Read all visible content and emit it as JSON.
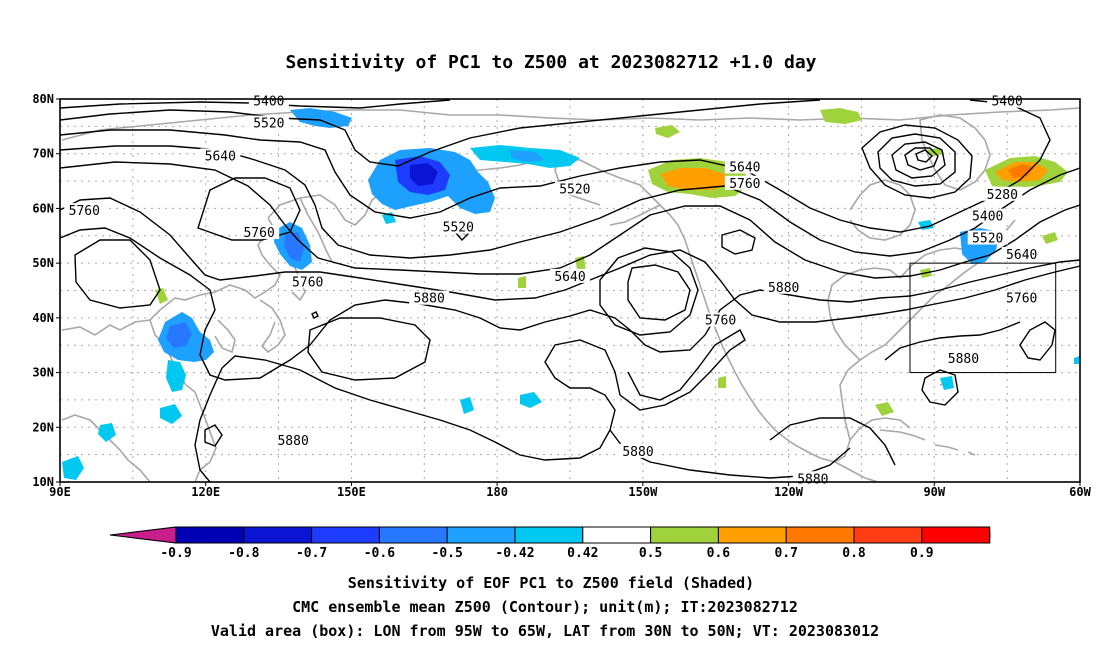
{
  "title": "Sensitivity of PC1 to Z500 at 2023082712 +1.0 day",
  "map": {
    "lon_labels": [
      "90E",
      "120E",
      "150E",
      "180",
      "150W",
      "120W",
      "90W",
      "60W"
    ],
    "lat_labels": [
      "80N",
      "70N",
      "60N",
      "50N",
      "40N",
      "30N",
      "20N",
      "10N"
    ],
    "contour_labels": [
      {
        "text": "5400",
        "lon": 133,
        "lat": 79.5
      },
      {
        "text": "5520",
        "lon": 133,
        "lat": 75.5
      },
      {
        "text": "5640",
        "lon": 123,
        "lat": 69.5
      },
      {
        "text": "5760",
        "lon": 95,
        "lat": 59.5
      },
      {
        "text": "5760",
        "lon": 131,
        "lat": 55.5
      },
      {
        "text": "5760",
        "lon": 141,
        "lat": 46.5
      },
      {
        "text": "5880",
        "lon": 166,
        "lat": 43.5
      },
      {
        "text": "5520",
        "lon": 172,
        "lat": 56.5
      },
      {
        "text": "5520",
        "lon": -164,
        "lat": 63.5
      },
      {
        "text": "5640",
        "lon": -165,
        "lat": 47.5
      },
      {
        "text": "5640",
        "lon": -129,
        "lat": 67.5
      },
      {
        "text": "5760",
        "lon": -129,
        "lat": 64.5
      },
      {
        "text": "5760",
        "lon": -134,
        "lat": 39.5
      },
      {
        "text": "5880",
        "lon": -121,
        "lat": 45.5
      },
      {
        "text": "5400",
        "lon": -75,
        "lat": 79.5
      },
      {
        "text": "5280",
        "lon": -76,
        "lat": 62.5
      },
      {
        "text": "5400",
        "lon": -79,
        "lat": 58.5
      },
      {
        "text": "5520",
        "lon": -79,
        "lat": 54.5
      },
      {
        "text": "5640",
        "lon": -72,
        "lat": 51.5
      },
      {
        "text": "5760",
        "lon": -72,
        "lat": 43.5
      },
      {
        "text": "5880",
        "lon": -84,
        "lat": 32.5
      },
      {
        "text": "5880",
        "lon": 138,
        "lat": 17.5
      },
      {
        "text": "5880",
        "lon": -151,
        "lat": 15.5
      },
      {
        "text": "5880",
        "lon": -115,
        "lat": 10.5
      }
    ],
    "valid_box": {
      "lon_min": -95,
      "lon_max": -65,
      "lat_min": 30,
      "lat_max": 50
    }
  },
  "colorbar": {
    "labels": [
      "-0.9",
      "-0.8",
      "-0.7",
      "-0.6",
      "-0.5",
      "-0.42",
      "0.42",
      "0.5",
      "0.6",
      "0.7",
      "0.8",
      "0.9"
    ],
    "colors": [
      "#c81e8c",
      "#0000b4",
      "#0a14d2",
      "#1e3cff",
      "#2878ff",
      "#1ea0ff",
      "#00c8f0",
      "#ffffff",
      "#a0d23c",
      "#ffa000",
      "#ff7800",
      "#ff3c14",
      "#ff0000",
      "#f09bc8"
    ]
  },
  "footer": {
    "line1": "Sensitivity of EOF PC1 to Z500 field (Shaded)",
    "line2": "CMC ensemble mean Z500 (Contour); unit(m); IT:2023082712",
    "line3": "Valid area (box): LON from 95W to 65W, LAT from 30N to 50N; VT: 2023083012"
  }
}
